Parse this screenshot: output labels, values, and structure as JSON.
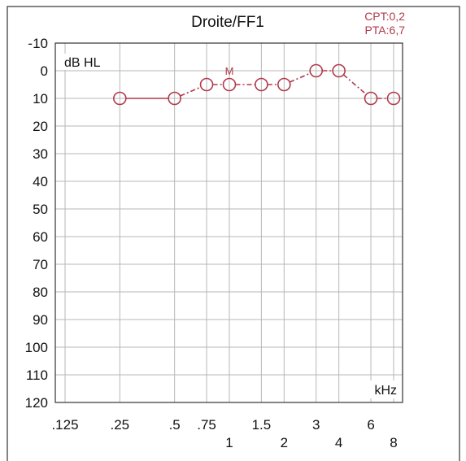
{
  "chart_data": {
    "type": "line",
    "title": "Droite/FF1",
    "annotations": [
      "CPT:0,2",
      "PTA:6,7"
    ],
    "ylabel": "dB HL",
    "xlabel": "kHz",
    "ylim": [
      -10,
      120
    ],
    "y_ticks": [
      -10,
      0,
      10,
      20,
      30,
      40,
      50,
      60,
      70,
      80,
      90,
      100,
      110,
      120
    ],
    "y_inverted": true,
    "x_scale": "log",
    "x_ticks": [
      {
        "v": 0.125,
        "label": ".125",
        "row": 1
      },
      {
        "v": 0.25,
        "label": ".25",
        "row": 1
      },
      {
        "v": 0.5,
        "label": ".5",
        "row": 1
      },
      {
        "v": 0.75,
        "label": ".75",
        "row": 1
      },
      {
        "v": 1,
        "label": "1",
        "row": 2
      },
      {
        "v": 1.5,
        "label": "1.5",
        "row": 1
      },
      {
        "v": 2,
        "label": "2",
        "row": 2
      },
      {
        "v": 3,
        "label": "3",
        "row": 1
      },
      {
        "v": 4,
        "label": "4",
        "row": 2
      },
      {
        "v": 6,
        "label": "6",
        "row": 1
      },
      {
        "v": 8,
        "label": "8",
        "row": 2
      }
    ],
    "grid": true,
    "marker_note": "M",
    "marker_note_x": 1,
    "series": [
      {
        "marker": "circle",
        "color": "#b03a4c",
        "x": [
          0.25,
          0.5,
          0.75,
          1,
          1.5,
          2,
          3,
          4,
          6,
          8
        ],
        "y": [
          10,
          10,
          5,
          5,
          5,
          5,
          0,
          0,
          10,
          10
        ]
      }
    ]
  }
}
